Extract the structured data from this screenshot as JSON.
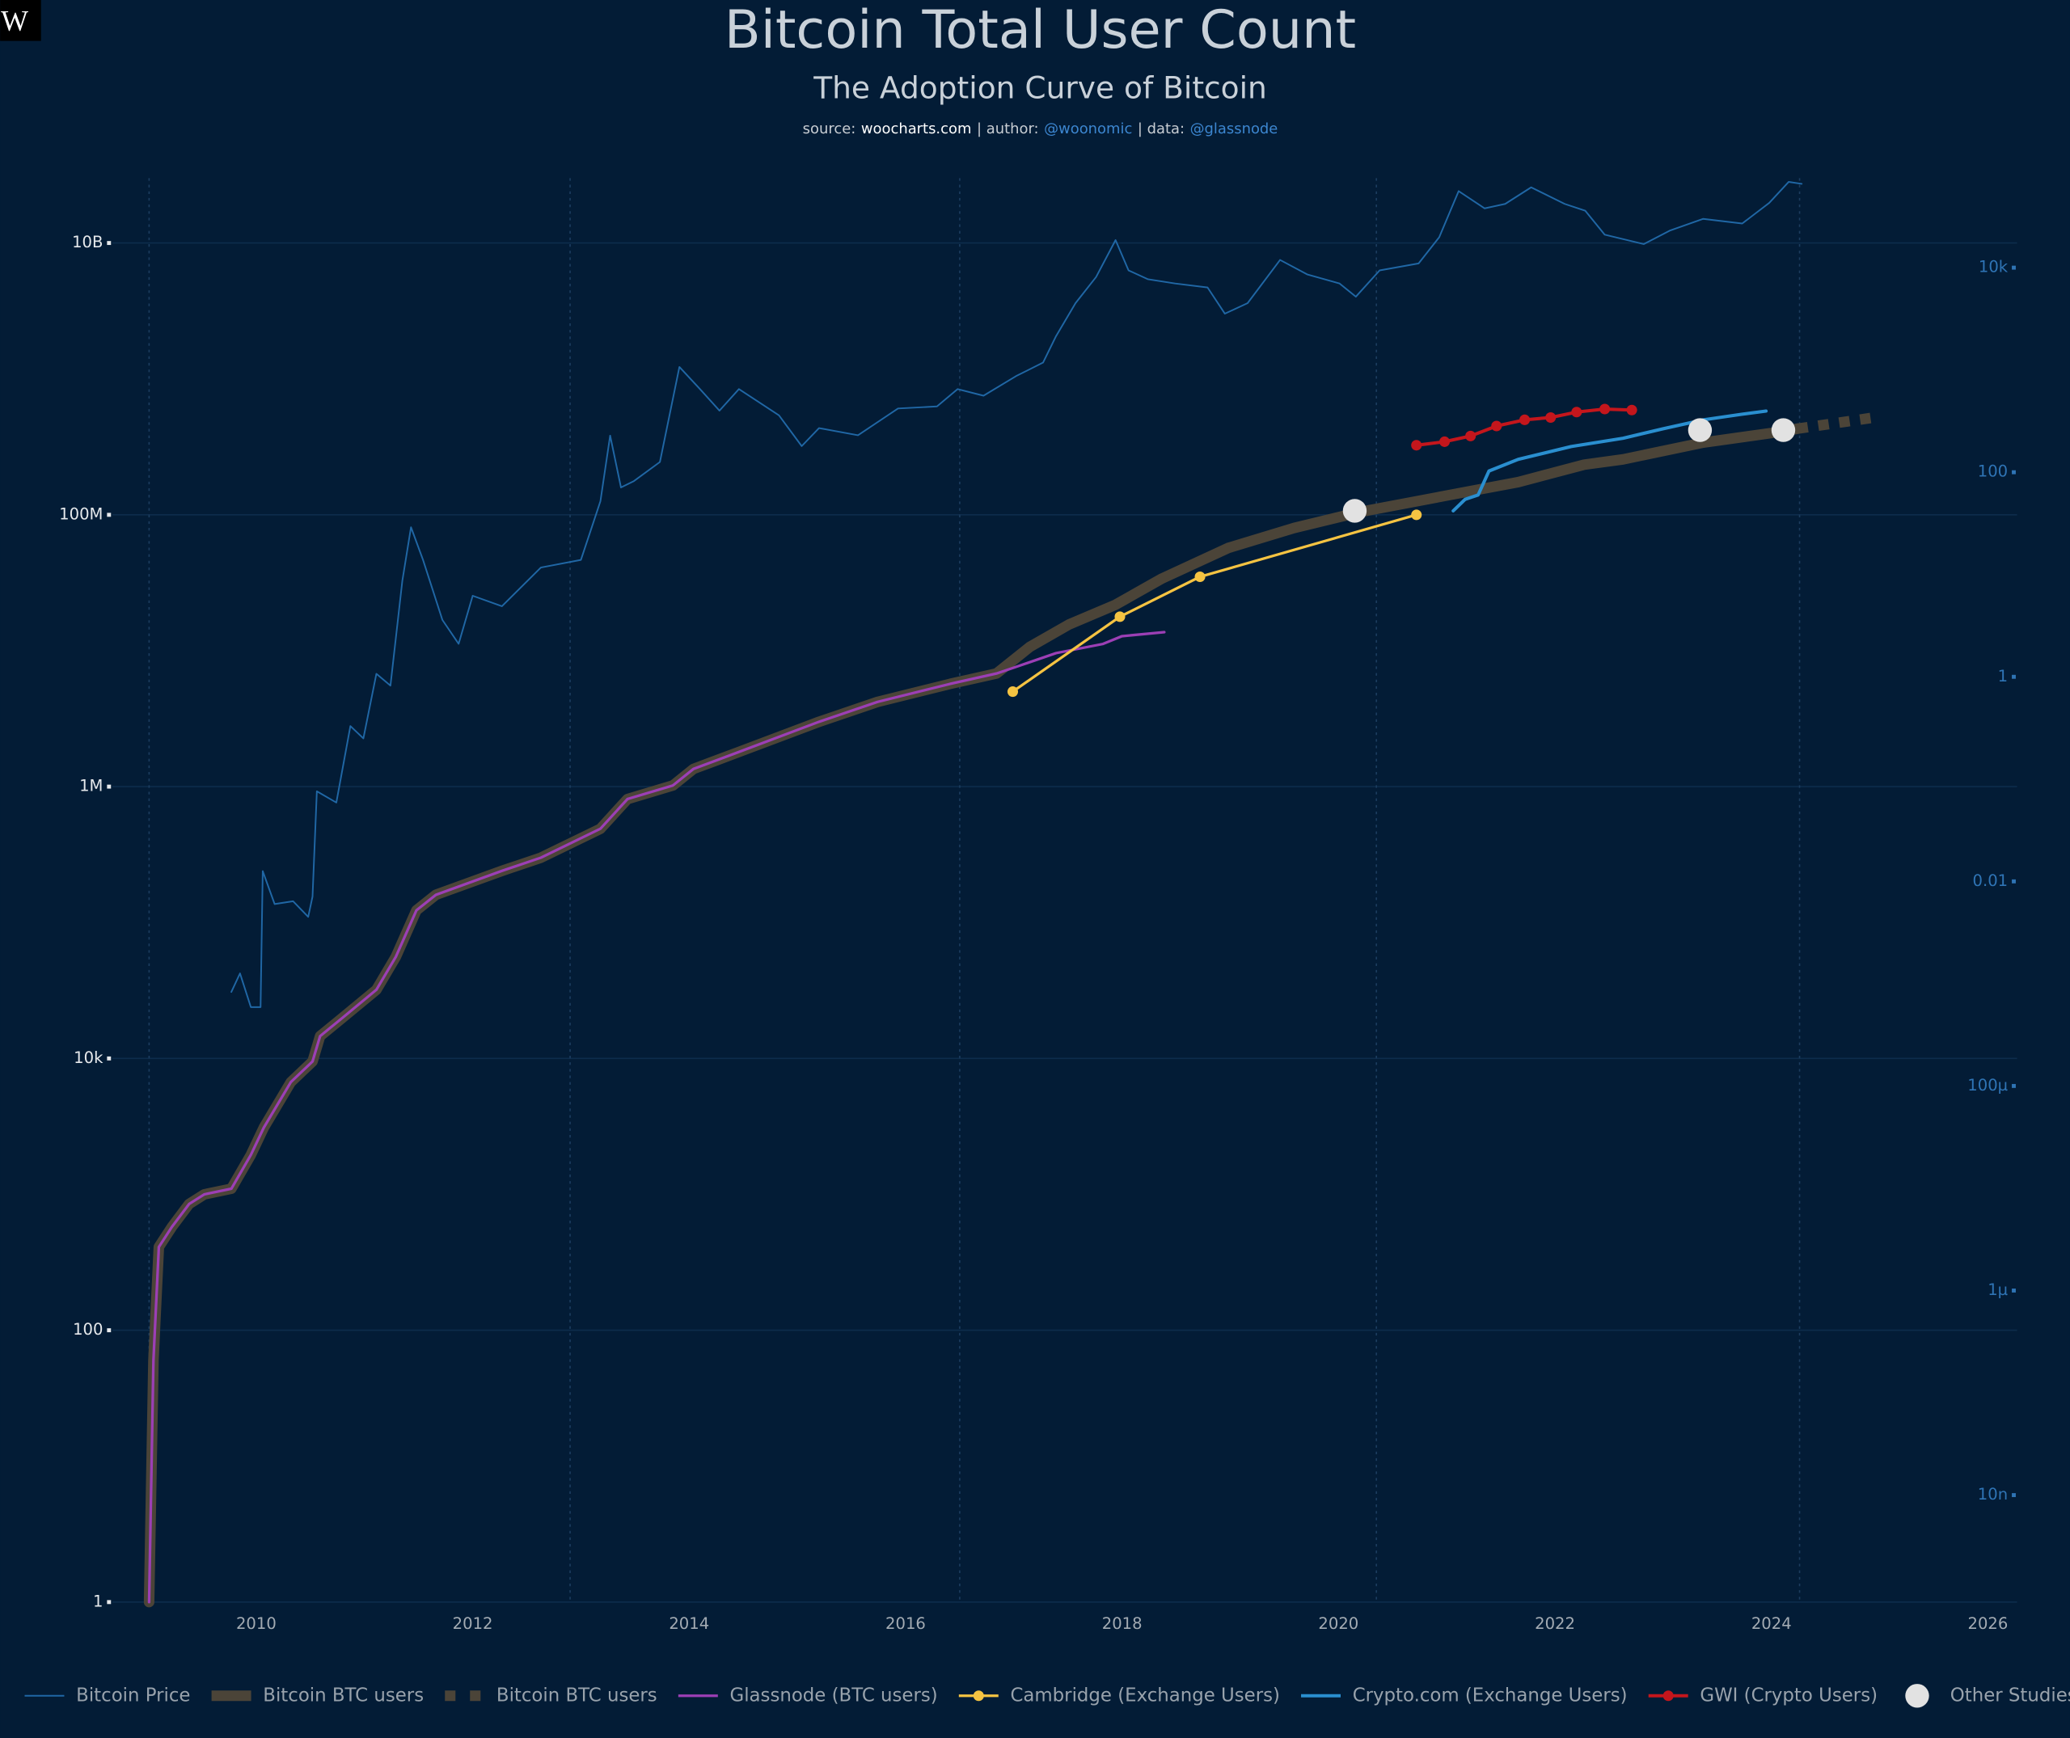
{
  "logo": "W",
  "chart_data": {
    "type": "line",
    "title": "Bitcoin Total User Count",
    "subtitle": "The Adoption Curve of Bitcoin",
    "source": [
      {
        "text": "source:",
        "color": "#c8cdd3"
      },
      {
        "text": "woocharts.com",
        "color": "#ffffff"
      },
      {
        "text": "| author:",
        "color": "#c8cdd3"
      },
      {
        "text": "@woonomic",
        "color": "#3c86d0"
      },
      {
        "text": "| data:",
        "color": "#c8cdd3"
      },
      {
        "text": "@glassnode",
        "color": "#3c86d0"
      }
    ],
    "xlim": [
      2008.67,
      2026.27
    ],
    "xticks": [
      2010,
      2012,
      2014,
      2016,
      2018,
      2020,
      2022,
      2024,
      2026
    ],
    "ylim": [
      1,
      30000000000
    ],
    "ylog": true,
    "yticks": [
      1,
      100,
      {
        "value": 10000,
        "label": "10k"
      },
      {
        "value": 1000000,
        "label": "1M"
      },
      {
        "value": 100000000,
        "label": "100M"
      },
      {
        "value": 10000000000,
        "label": "10B"
      }
    ],
    "y2lim": [
      9e-10,
      75000
    ],
    "y2log": true,
    "y2ticks": [
      {
        "value": 1e-08,
        "label": "10n"
      },
      {
        "value": 1e-06,
        "label": "1µ"
      },
      {
        "value": 0.0001,
        "label": "100µ"
      },
      0.01,
      1,
      100,
      {
        "value": 10000,
        "label": "10k"
      }
    ],
    "grid": true,
    "vlines": [
      2009.01,
      2012.9,
      2016.5,
      2020.35,
      2024.26
    ],
    "legend": "bottom",
    "series": [
      {
        "name": "Bitcoin Price",
        "color": "#2067a5",
        "line_width": 1.2,
        "axis": "y2",
        "mode": "lines",
        "x": [
          2009.77,
          2009.85,
          2009.95,
          2010.04,
          2010.06,
          2010.17,
          2010.34,
          2010.48,
          2010.52,
          2010.56,
          2010.74,
          2010.87,
          2010.99,
          2011.11,
          2011.24,
          2011.35,
          2011.43,
          2011.54,
          2011.72,
          2011.87,
          2012.0,
          2012.27,
          2012.63,
          2013.0,
          2013.18,
          2013.27,
          2013.37,
          2013.49,
          2013.73,
          2013.91,
          2014.1,
          2014.28,
          2014.46,
          2014.83,
          2015.04,
          2015.2,
          2015.56,
          2015.93,
          2016.29,
          2016.48,
          2016.72,
          2017.02,
          2017.27,
          2017.39,
          2017.57,
          2017.76,
          2017.94,
          2018.06,
          2018.24,
          2018.49,
          2018.79,
          2018.95,
          2019.16,
          2019.46,
          2019.71,
          2020.01,
          2020.16,
          2020.38,
          2020.74,
          2020.93,
          2021.11,
          2021.35,
          2021.54,
          2021.78,
          2022.09,
          2022.28,
          2022.46,
          2022.82,
          2023.06,
          2023.37,
          2023.73,
          2023.98,
          2024.16,
          2024.28
        ],
        "values": [
          0.00083,
          0.00126,
          0.00059,
          0.00059,
          0.0126,
          0.006,
          0.0064,
          0.0045,
          0.0071,
          0.076,
          0.059,
          0.33,
          0.25,
          1.07,
          0.82,
          8.7,
          29,
          14,
          3.6,
          2.1,
          6.2,
          4.9,
          11.7,
          13.9,
          52,
          228,
          71,
          82,
          126,
          1070,
          650,
          400,
          650,
          360,
          180,
          270,
          230,
          420,
          440,
          650,
          560,
          870,
          1180,
          2140,
          4500,
          8100,
          18600,
          9400,
          7700,
          7000,
          6400,
          3550,
          4500,
          11900,
          8600,
          7000,
          5200,
          9400,
          11000,
          19800,
          56000,
          38000,
          42000,
          61000,
          42000,
          36000,
          21000,
          17000,
          23000,
          30000,
          27000,
          43000,
          69000,
          66000
        ]
      },
      {
        "name": "Bitcoin BTC users",
        "color": "#4b4438",
        "line_width": 8,
        "mode": "lines",
        "x": [
          2009.01,
          2009.05,
          2009.1,
          2009.22,
          2009.38,
          2009.52,
          2009.77,
          2009.95,
          2010.07,
          2010.32,
          2010.52,
          2010.59,
          2010.8,
          2011.11,
          2011.29,
          2011.48,
          2011.66,
          2012.27,
          2012.63,
          2013.18,
          2013.43,
          2013.85,
          2014.04,
          2014.46,
          2015.2,
          2015.74,
          2016.41,
          2016.84,
          2017.15,
          2017.51,
          2017.94,
          2018.37,
          2018.98,
          2019.59,
          2020.2,
          2021.05,
          2021.66,
          2022.27,
          2022.63,
          2023.37,
          2024.1,
          2024.24
        ],
        "values": [
          1,
          60,
          410,
          575,
          850,
          1000,
          1100,
          1950,
          3100,
          6700,
          9500,
          14600,
          20000,
          32000,
          56000,
          123000,
          160000,
          240000,
          300000,
          490000,
          810000,
          1020000,
          1350000,
          1800000,
          3000000,
          4200000,
          5700000,
          6800000,
          10700000,
          15600000,
          21800000,
          34000000,
          57000000,
          80000000,
          105000000,
          141000000,
          174000000,
          234000000,
          256000000,
          340000000,
          410000000,
          430000000
        ]
      },
      {
        "name": "Bitcoin BTC users",
        "color": "#4b4438",
        "line_width": 8,
        "dash": true,
        "mode": "lines",
        "x": [
          2024.24,
          2024.95
        ],
        "values": [
          430000000,
          520000000
        ]
      },
      {
        "name": "Glassnode (BTC users)",
        "color": "#9c3fb5",
        "line_width": 2,
        "mode": "lines",
        "x": [
          2009.01,
          2009.05,
          2009.1,
          2009.22,
          2009.38,
          2009.52,
          2009.77,
          2009.95,
          2010.07,
          2010.32,
          2010.52,
          2010.59,
          2010.8,
          2011.11,
          2011.29,
          2011.48,
          2011.66,
          2012.27,
          2012.63,
          2013.18,
          2013.43,
          2013.85,
          2014.04,
          2014.46,
          2015.2,
          2015.74,
          2016.41,
          2016.84,
          2017.02,
          2017.39,
          2017.82,
          2018.0,
          2018.39
        ],
        "values": [
          1,
          60,
          410,
          575,
          850,
          1000,
          1100,
          1950,
          3100,
          6700,
          9500,
          14600,
          20000,
          32000,
          56000,
          123000,
          160000,
          240000,
          300000,
          490000,
          810000,
          1020000,
          1350000,
          1800000,
          3000000,
          4200000,
          5700000,
          6800000,
          7600000,
          9600000,
          11200000,
          12800000,
          13700000
        ]
      },
      {
        "name": "Cambridge (Exchange Users)",
        "color": "#f5c342",
        "line_width": 2,
        "mode": "lines+markers",
        "x": [
          2016.99,
          2017.98,
          2018.72,
          2020.72
        ],
        "values": [
          5000000,
          17800000,
          35000000,
          100000000
        ]
      },
      {
        "name": "Crypto.com (Exchange Users)",
        "color": "#2a8fd0",
        "line_width": 2.5,
        "mode": "lines",
        "x": [
          2021.06,
          2021.17,
          2021.29,
          2021.39,
          2021.66,
          2022.15,
          2022.63,
          2023.0,
          2023.37,
          2023.73,
          2023.95
        ],
        "values": [
          107000000,
          130000000,
          140000000,
          210000000,
          256000000,
          318000000,
          366000000,
          430000000,
          500000000,
          550000000,
          580000000
        ]
      },
      {
        "name": "GWI (Crypto Users)",
        "color": "#c4161c",
        "line_width": 2.5,
        "mode": "lines+markers",
        "x": [
          2020.72,
          2020.98,
          2021.22,
          2021.46,
          2021.72,
          2021.96,
          2022.2,
          2022.46,
          2022.71
        ],
        "values": [
          325000000,
          345000000,
          380000000,
          450000000,
          500000000,
          520000000,
          570000000,
          600000000,
          590000000
        ]
      },
      {
        "name": "Other Studies",
        "color": "#e2e2e2",
        "mode": "markers",
        "x": [
          2020.15,
          2023.34,
          2024.11
        ],
        "values": [
          107000000,
          420000000,
          420000000
        ]
      }
    ]
  }
}
